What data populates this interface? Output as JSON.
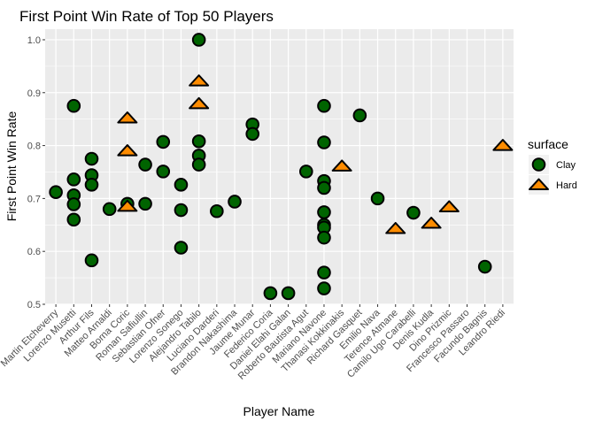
{
  "chart_data": {
    "type": "scatter",
    "title": "First Point Win Rate of Top 50 Players",
    "xlabel": "Player Name",
    "ylabel": "First Point Win Rate",
    "ylim": [
      0.5,
      1.02
    ],
    "y_ticks": [
      "0.5",
      "0.6",
      "0.7",
      "0.8",
      "0.9",
      "1.0"
    ],
    "grid": true,
    "legend_position": "right",
    "categories": [
      "Martin Etcheverry",
      "Lorenzo Musetti",
      "Arthur Fils",
      "Matteo Arnaldi",
      "Borna Coric",
      "Roman Safiullin",
      "Sebastian Ofner",
      "Lorenzo Sonego",
      "Alejandro Tabilo",
      "Luciano Darderi",
      "Brandon Nakashima",
      "Jaume Munar",
      "Federico Coria",
      "Daniel Elahi Galan",
      "Roberto Bautista Agut",
      "Mariano Navone",
      "Thanasi Kokkinakis",
      "Richard Gasquet",
      "Emilio Nava",
      "Terence Atmane",
      "Camilo Ugo Carabelli",
      "Denis Kudla",
      "Dino Prizmic",
      "Francesco Passaro",
      "Facundo Bagnis",
      "Leandro Riedi"
    ],
    "legend": {
      "title": "surface",
      "entries": [
        {
          "key": "Clay",
          "label": "Clay",
          "shape": "circle"
        },
        {
          "key": "Hard",
          "label": "Hard",
          "shape": "triangle"
        }
      ]
    },
    "colors": {
      "Clay": "#006400",
      "Hard": "#ff8c00",
      "outline": "#000000"
    },
    "series": [
      {
        "name": "Clay",
        "points": [
          {
            "x": "Martin Etcheverry",
            "y": 0.712
          },
          {
            "x": "Lorenzo Musetti",
            "y": 0.875
          },
          {
            "x": "Lorenzo Musetti",
            "y": 0.736
          },
          {
            "x": "Lorenzo Musetti",
            "y": 0.706
          },
          {
            "x": "Lorenzo Musetti",
            "y": 0.689
          },
          {
            "x": "Lorenzo Musetti",
            "y": 0.66
          },
          {
            "x": "Arthur Fils",
            "y": 0.775
          },
          {
            "x": "Arthur Fils",
            "y": 0.744
          },
          {
            "x": "Arthur Fils",
            "y": 0.726
          },
          {
            "x": "Arthur Fils",
            "y": 0.583
          },
          {
            "x": "Matteo Arnaldi",
            "y": 0.68
          },
          {
            "x": "Borna Coric",
            "y": 0.69
          },
          {
            "x": "Roman Safiullin",
            "y": 0.764
          },
          {
            "x": "Roman Safiullin",
            "y": 0.69
          },
          {
            "x": "Sebastian Ofner",
            "y": 0.807
          },
          {
            "x": "Sebastian Ofner",
            "y": 0.751
          },
          {
            "x": "Lorenzo Sonego",
            "y": 0.726
          },
          {
            "x": "Lorenzo Sonego",
            "y": 0.678
          },
          {
            "x": "Lorenzo Sonego",
            "y": 0.607
          },
          {
            "x": "Alejandro Tabilo",
            "y": 1.0
          },
          {
            "x": "Alejandro Tabilo",
            "y": 0.808
          },
          {
            "x": "Alejandro Tabilo",
            "y": 0.781
          },
          {
            "x": "Alejandro Tabilo",
            "y": 0.764
          },
          {
            "x": "Luciano Darderi",
            "y": 0.676
          },
          {
            "x": "Brandon Nakashima",
            "y": 0.694
          },
          {
            "x": "Jaume Munar",
            "y": 0.84
          },
          {
            "x": "Jaume Munar",
            "y": 0.822
          },
          {
            "x": "Federico Coria",
            "y": 0.521
          },
          {
            "x": "Daniel Elahi Galan",
            "y": 0.521
          },
          {
            "x": "Roberto Bautista Agut",
            "y": 0.751
          },
          {
            "x": "Mariano Navone",
            "y": 0.875
          },
          {
            "x": "Mariano Navone",
            "y": 0.806
          },
          {
            "x": "Mariano Navone",
            "y": 0.733
          },
          {
            "x": "Mariano Navone",
            "y": 0.72
          },
          {
            "x": "Mariano Navone",
            "y": 0.674
          },
          {
            "x": "Mariano Navone",
            "y": 0.65
          },
          {
            "x": "Mariano Navone",
            "y": 0.645
          },
          {
            "x": "Mariano Navone",
            "y": 0.626
          },
          {
            "x": "Mariano Navone",
            "y": 0.56
          },
          {
            "x": "Mariano Navone",
            "y": 0.53
          },
          {
            "x": "Richard Gasquet",
            "y": 0.857
          },
          {
            "x": "Emilio Nava",
            "y": 0.7
          },
          {
            "x": "Camilo Ugo Carabelli",
            "y": 0.673
          },
          {
            "x": "Facundo Bagnis",
            "y": 0.571
          }
        ]
      },
      {
        "name": "Hard",
        "points": [
          {
            "x": "Borna Coric",
            "y": 0.852
          },
          {
            "x": "Borna Coric",
            "y": 0.79
          },
          {
            "x": "Borna Coric",
            "y": 0.685
          },
          {
            "x": "Alejandro Tabilo",
            "y": 0.922
          },
          {
            "x": "Alejandro Tabilo",
            "y": 0.879
          },
          {
            "x": "Thanasi Kokkinakis",
            "y": 0.761
          },
          {
            "x": "Terence Atmane",
            "y": 0.643
          },
          {
            "x": "Denis Kudla",
            "y": 0.653
          },
          {
            "x": "Dino Prizmic",
            "y": 0.684
          },
          {
            "x": "Leandro Riedi",
            "y": 0.8
          }
        ]
      }
    ]
  }
}
